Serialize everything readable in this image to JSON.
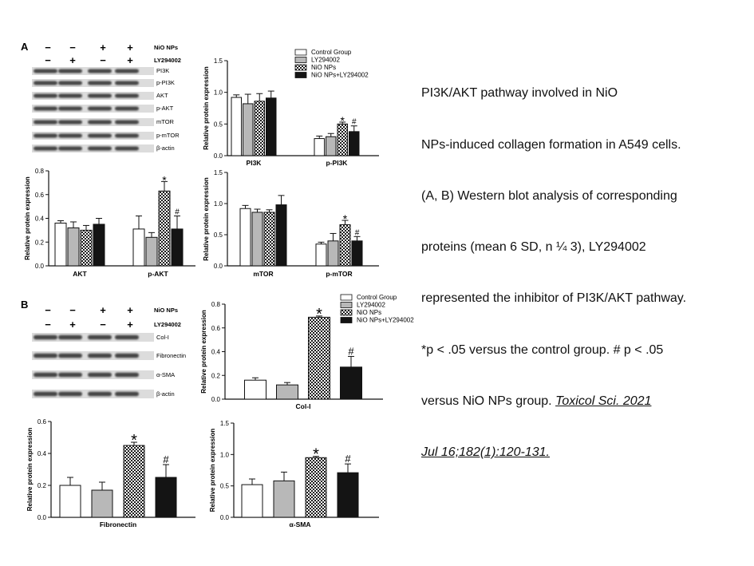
{
  "panel_labels": {
    "a": "A",
    "b": "B"
  },
  "treatment": {
    "row1_label": "NiO NPs",
    "row2_label": "LY294002",
    "row1_signs": [
      "−",
      "−",
      "+",
      "+"
    ],
    "row2_signs": [
      "−",
      "+",
      "−",
      "+"
    ]
  },
  "blots": {
    "a": [
      "PI3K",
      "p-PI3K",
      "AKT",
      "p-AKT",
      "mTOR",
      "p-mTOR",
      "β-actin"
    ],
    "b": [
      "Col-I",
      "Fibronectin",
      "α-SMA",
      "β-actin"
    ]
  },
  "legend": [
    "Control Group",
    "LY294002",
    "NiO NPs",
    "NiO NPs+LY294002"
  ],
  "caption": {
    "lines": [
      "PI3K/AKT pathway involved in NiO",
      "NPs-induced collagen formation in A549 cells.",
      "(A, B) Western blot analysis of corresponding",
      "proteins (mean 6 SD, n ¼ 3), LY294002",
      "represented the inhibitor of PI3K/AKT pathway.",
      "*p < .05 versus the control group. # p < .05",
      "versus NiO NPs group."
    ],
    "ref_line1": "Toxicol Sci. 2021",
    "ref_line2": "Jul 16;182(1):120-131."
  },
  "colors": {
    "control": "#ffffff",
    "ly294002": "#b8b8b8",
    "nio": "checker",
    "nio_ly": "#141414"
  },
  "chart_data": [
    {
      "id": "pi3k",
      "type": "bar",
      "ylabel": "Relative protein expression",
      "ylim": [
        0,
        1.5
      ],
      "yticks": [
        "0.0",
        "0.5",
        "1.0",
        "1.5"
      ],
      "categories": [
        "PI3K",
        "p-PI3K"
      ],
      "series": [
        {
          "name": "Control Group",
          "values": [
            0.92,
            0.27
          ],
          "err": [
            0.04,
            0.04
          ],
          "marks": [
            "",
            ""
          ]
        },
        {
          "name": "LY294002",
          "values": [
            0.82,
            0.3
          ],
          "err": [
            0.15,
            0.05
          ],
          "marks": [
            "",
            ""
          ]
        },
        {
          "name": "NiO NPs",
          "values": [
            0.86,
            0.5
          ],
          "err": [
            0.12,
            0.03
          ],
          "marks": [
            "",
            "*"
          ]
        },
        {
          "name": "NiO NPs+LY294002",
          "values": [
            0.91,
            0.38
          ],
          "err": [
            0.11,
            0.09
          ],
          "marks": [
            "",
            "#"
          ]
        }
      ],
      "legend": "top-right"
    },
    {
      "id": "akt",
      "type": "bar",
      "ylabel": "Relative protein expression",
      "ylim": [
        0,
        0.8
      ],
      "yticks": [
        "0.0",
        "0.2",
        "0.4",
        "0.6",
        "0.8"
      ],
      "categories": [
        "AKT",
        "p-AKT"
      ],
      "series": [
        {
          "name": "Control Group",
          "values": [
            0.36,
            0.31
          ],
          "err": [
            0.02,
            0.11
          ],
          "marks": [
            "",
            ""
          ]
        },
        {
          "name": "LY294002",
          "values": [
            0.32,
            0.24
          ],
          "err": [
            0.05,
            0.04
          ],
          "marks": [
            "",
            ""
          ]
        },
        {
          "name": "NiO NPs",
          "values": [
            0.3,
            0.63
          ],
          "err": [
            0.04,
            0.08
          ],
          "marks": [
            "",
            "*"
          ]
        },
        {
          "name": "NiO NPs+LY294002",
          "values": [
            0.35,
            0.31
          ],
          "err": [
            0.05,
            0.11
          ],
          "marks": [
            "",
            "#"
          ]
        }
      ]
    },
    {
      "id": "mtor",
      "type": "bar",
      "ylabel": "Relative protein expression",
      "ylim": [
        0,
        1.5
      ],
      "yticks": [
        "0.0",
        "0.5",
        "1.0",
        "1.5"
      ],
      "categories": [
        "mTOR",
        "p-mTOR"
      ],
      "series": [
        {
          "name": "Control Group",
          "values": [
            0.92,
            0.35
          ],
          "err": [
            0.05,
            0.03
          ],
          "marks": [
            "",
            ""
          ]
        },
        {
          "name": "LY294002",
          "values": [
            0.86,
            0.4
          ],
          "err": [
            0.05,
            0.12
          ],
          "marks": [
            "",
            ""
          ]
        },
        {
          "name": "NiO NPs",
          "values": [
            0.86,
            0.66
          ],
          "err": [
            0.04,
            0.07
          ],
          "marks": [
            "",
            "*"
          ]
        },
        {
          "name": "NiO NPs+LY294002",
          "values": [
            0.98,
            0.4
          ],
          "err": [
            0.15,
            0.07
          ],
          "marks": [
            "",
            "#"
          ]
        }
      ]
    },
    {
      "id": "coli",
      "type": "bar",
      "ylabel": "Relative protein expression",
      "ylim": [
        0,
        0.8
      ],
      "yticks": [
        "0.0",
        "0.2",
        "0.4",
        "0.6",
        "0.8"
      ],
      "categories": [
        "Col-I"
      ],
      "series": [
        {
          "name": "Control Group",
          "values": [
            0.16
          ],
          "err": [
            0.02
          ],
          "marks": [
            ""
          ]
        },
        {
          "name": "LY294002",
          "values": [
            0.12
          ],
          "err": [
            0.02
          ],
          "marks": [
            ""
          ]
        },
        {
          "name": "NiO NPs",
          "values": [
            0.69
          ],
          "err": [
            0.01
          ],
          "marks": [
            "*"
          ]
        },
        {
          "name": "NiO NPs+LY294002",
          "values": [
            0.27
          ],
          "err": [
            0.09
          ],
          "marks": [
            "#"
          ]
        }
      ],
      "legend": "top-right"
    },
    {
      "id": "fibronectin",
      "type": "bar",
      "ylabel": "Relative protein expression",
      "ylim": [
        0,
        0.6
      ],
      "yticks": [
        "0.0",
        "0.2",
        "0.4",
        "0.6"
      ],
      "categories": [
        "Fibronectin"
      ],
      "series": [
        {
          "name": "Control Group",
          "values": [
            0.2
          ],
          "err": [
            0.05
          ],
          "marks": [
            ""
          ]
        },
        {
          "name": "LY294002",
          "values": [
            0.17
          ],
          "err": [
            0.05
          ],
          "marks": [
            ""
          ]
        },
        {
          "name": "NiO NPs",
          "values": [
            0.45
          ],
          "err": [
            0.02
          ],
          "marks": [
            "*"
          ]
        },
        {
          "name": "NiO NPs+LY294002",
          "values": [
            0.25
          ],
          "err": [
            0.08
          ],
          "marks": [
            "#"
          ]
        }
      ]
    },
    {
      "id": "asma",
      "type": "bar",
      "ylabel": "Relative protein expression",
      "ylim": [
        0,
        1.5
      ],
      "yticks": [
        "0.0",
        "0.5",
        "1.0",
        "1.5"
      ],
      "categories": [
        "α-SMA"
      ],
      "series": [
        {
          "name": "Control Group",
          "values": [
            0.52
          ],
          "err": [
            0.09
          ],
          "marks": [
            ""
          ]
        },
        {
          "name": "LY294002",
          "values": [
            0.58
          ],
          "err": [
            0.14
          ],
          "marks": [
            ""
          ]
        },
        {
          "name": "NiO NPs",
          "values": [
            0.95
          ],
          "err": [
            0.02
          ],
          "marks": [
            "*"
          ]
        },
        {
          "name": "NiO NPs+LY294002",
          "values": [
            0.71
          ],
          "err": [
            0.14
          ],
          "marks": [
            "#"
          ]
        }
      ]
    }
  ]
}
